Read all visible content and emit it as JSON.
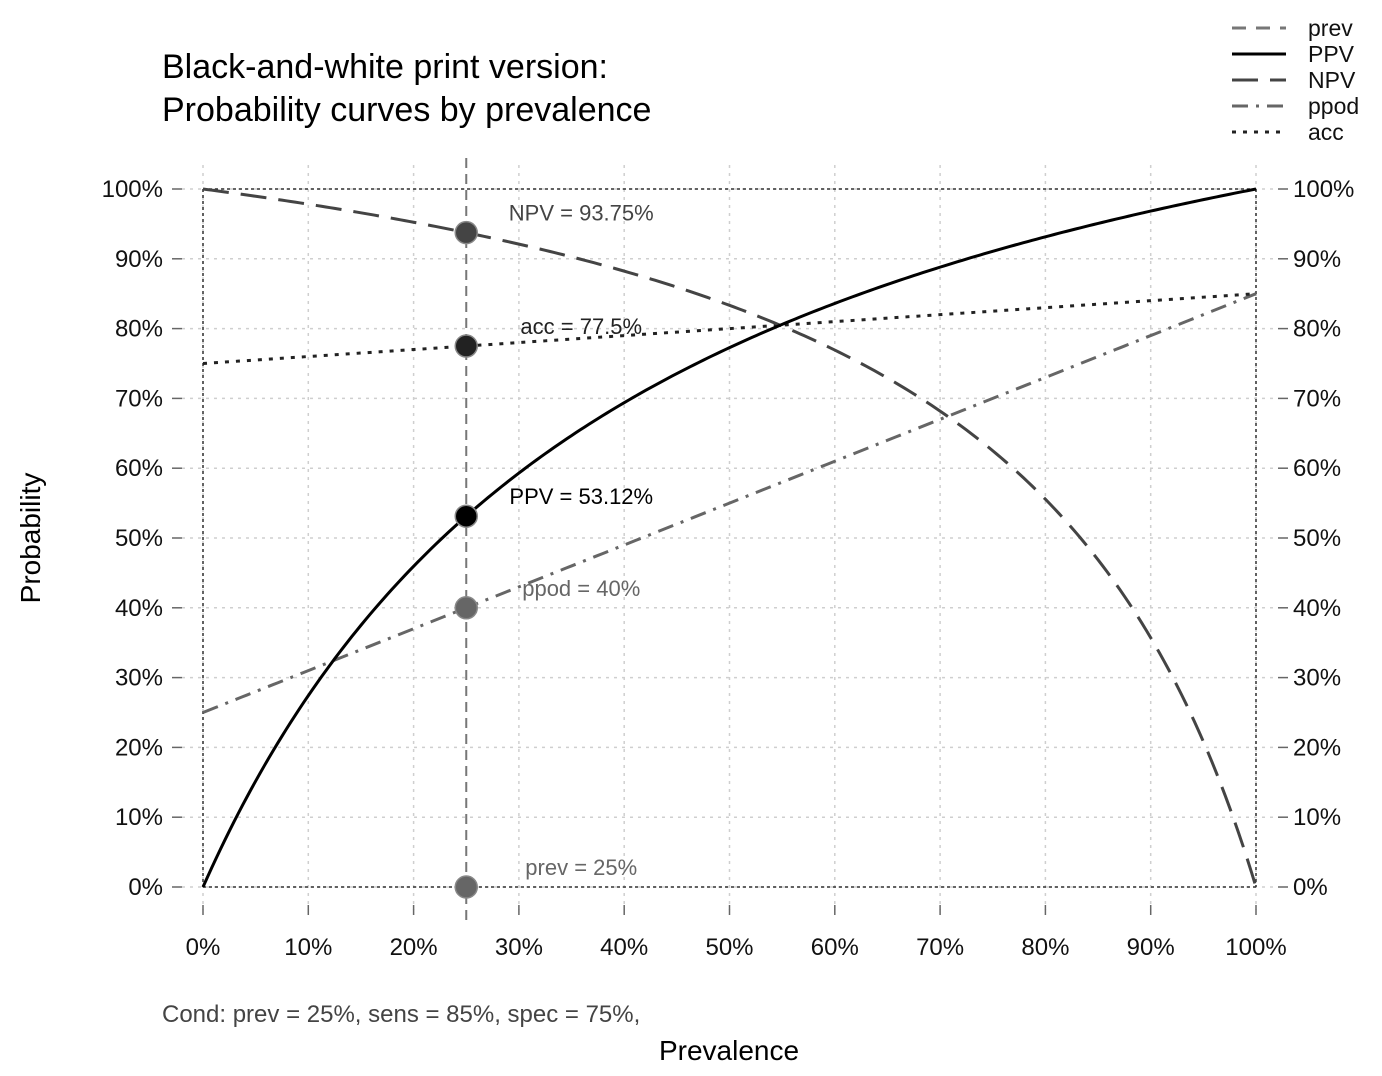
{
  "chart_data": {
    "type": "line",
    "title_lines": [
      "Black-and-white print version:",
      "Probability curves by prevalence"
    ],
    "xlabel": "Prevalence",
    "ylabel": "Probability",
    "caption": "Cond:  prev = 25%, sens = 85%, spec = 75%,",
    "xlim": [
      0,
      1
    ],
    "ylim": [
      0,
      1
    ],
    "grid": true,
    "legend_position": "top-right",
    "x_ticks": [
      "0%",
      "10%",
      "20%",
      "30%",
      "40%",
      "50%",
      "60%",
      "70%",
      "80%",
      "90%",
      "100%"
    ],
    "y_ticks": [
      "0%",
      "10%",
      "20%",
      "30%",
      "40%",
      "50%",
      "60%",
      "70%",
      "80%",
      "90%",
      "100%"
    ],
    "conditions": {
      "prev": 0.25,
      "sens": 0.85,
      "spec": 0.75
    },
    "series": [
      {
        "name": "prev",
        "color": "#777777",
        "dash": "14,10",
        "width": 3
      },
      {
        "name": "PPV",
        "color": "#000000",
        "dash": "",
        "width": 3
      },
      {
        "name": "NPV",
        "color": "#444444",
        "dash": "26,12",
        "width": 3
      },
      {
        "name": "ppod",
        "color": "#666666",
        "dash": "16,8,3,8",
        "width": 3
      },
      {
        "name": "acc",
        "color": "#222222",
        "dash": "4,7",
        "width": 3
      }
    ],
    "points": [
      {
        "key": "NPV",
        "x": 0.25,
        "y": 0.9375,
        "label": "NPV = 93.75%",
        "fill": "#444444",
        "text_color": "#444444"
      },
      {
        "key": "acc",
        "x": 0.25,
        "y": 0.775,
        "label": "acc = 77.5%",
        "fill": "#222222",
        "text_color": "#222222"
      },
      {
        "key": "PPV",
        "x": 0.25,
        "y": 0.53125,
        "label": "PPV = 53.12%",
        "fill": "#000000",
        "text_color": "#000000"
      },
      {
        "key": "ppod",
        "x": 0.25,
        "y": 0.4,
        "label": "ppod = 40%",
        "fill": "#666666",
        "text_color": "#666666"
      },
      {
        "key": "prev",
        "x": 0.25,
        "y": 0.0,
        "label": "prev = 25%",
        "fill": "#666666",
        "text_color": "#666666"
      }
    ]
  }
}
